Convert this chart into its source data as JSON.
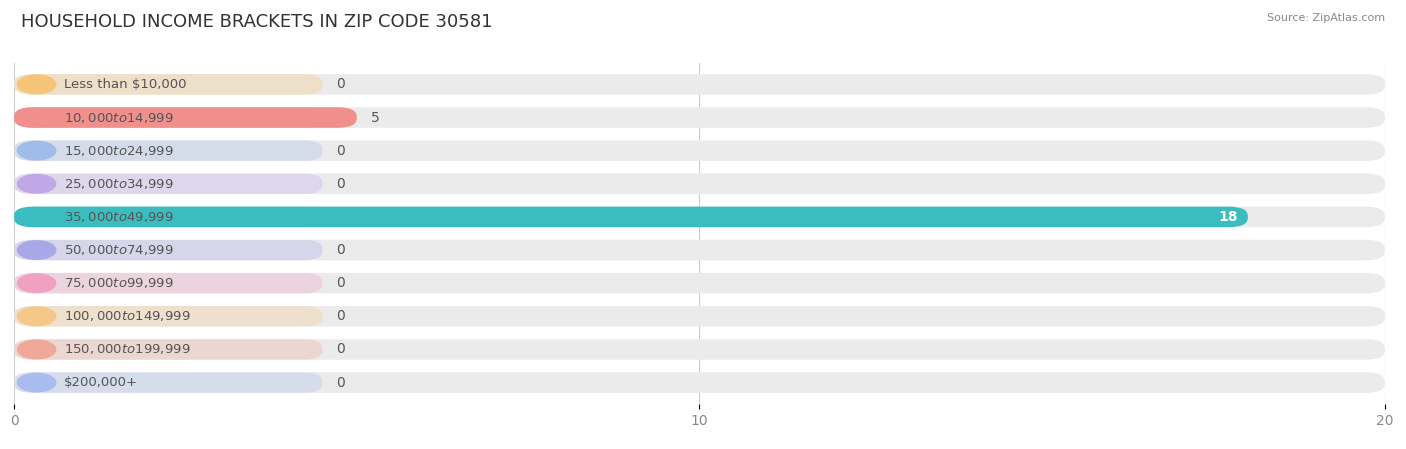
{
  "title": "HOUSEHOLD INCOME BRACKETS IN ZIP CODE 30581",
  "source": "Source: ZipAtlas.com",
  "categories": [
    "Less than $10,000",
    "$10,000 to $14,999",
    "$15,000 to $24,999",
    "$25,000 to $34,999",
    "$35,000 to $49,999",
    "$50,000 to $74,999",
    "$75,000 to $99,999",
    "$100,000 to $149,999",
    "$150,000 to $199,999",
    "$200,000+"
  ],
  "values": [
    0,
    5,
    0,
    0,
    18,
    0,
    0,
    0,
    0,
    0
  ],
  "bar_colors": [
    "#f5c478",
    "#f0908c",
    "#a0bce8",
    "#c0a8e8",
    "#3bbcbe",
    "#a8a8e8",
    "#f0a0c0",
    "#f5c88a",
    "#f0a898",
    "#a8bcf0"
  ],
  "pill_bg_alpha": 0.3,
  "xlim": [
    0,
    20
  ],
  "xticks": [
    0,
    10,
    20
  ],
  "background_color": "#ffffff",
  "bar_bg_color": "#ebebeb",
  "bar_bg_alpha": 1.0,
  "title_fontsize": 13,
  "tick_fontsize": 10,
  "value_fontsize": 10,
  "label_fontsize": 9.5,
  "grid_color": "#cccccc",
  "text_color": "#555555",
  "value_color_inside": "#ffffff",
  "value_color_outside": "#555555"
}
